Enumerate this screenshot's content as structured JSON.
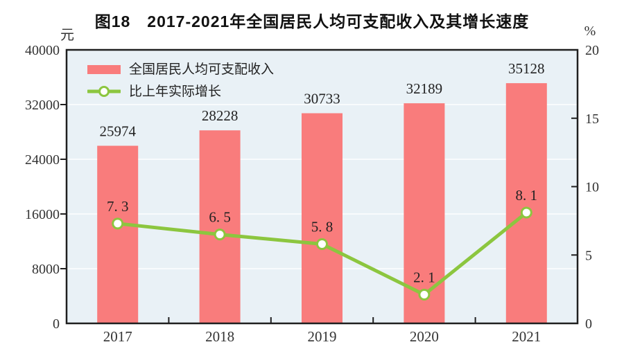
{
  "chart_data": {
    "type": "bar",
    "title": "图18　2017-2021年全国居民人均可支配收入及其增长速度",
    "categories": [
      "2017",
      "2018",
      "2019",
      "2020",
      "2021"
    ],
    "series": [
      {
        "name": "全国居民人均可支配收入",
        "type": "bar",
        "axis": "left",
        "values": [
          25974,
          28228,
          30733,
          32189,
          35128
        ],
        "labels": [
          "25974",
          "28228",
          "30733",
          "32189",
          "35128"
        ],
        "color": "#F97C7C"
      },
      {
        "name": "比上年实际增长",
        "type": "line",
        "axis": "right",
        "values": [
          7.3,
          6.5,
          5.8,
          2.1,
          8.1
        ],
        "labels": [
          "7. 3",
          "6. 5",
          "5. 8",
          "2. 1",
          "8. 1"
        ],
        "color": "#8CC63F",
        "marker": "circle",
        "marker_fill": "#FFFFFF"
      }
    ],
    "left_axis": {
      "unit": "元",
      "min": 0,
      "max": 40000,
      "ticks": [
        0,
        8000,
        16000,
        24000,
        32000,
        40000
      ]
    },
    "right_axis": {
      "unit": "%",
      "min": 0,
      "max": 20,
      "ticks": [
        0,
        5,
        10,
        15,
        20
      ]
    },
    "grid": true,
    "legend_position": "inside-top-left",
    "colors": {
      "plot_background": "#E9F1F6",
      "gridline": "#F8FBFD",
      "axis": "#1F1F1F",
      "tick_text": "#333333",
      "data_label_text": "#222222"
    }
  }
}
